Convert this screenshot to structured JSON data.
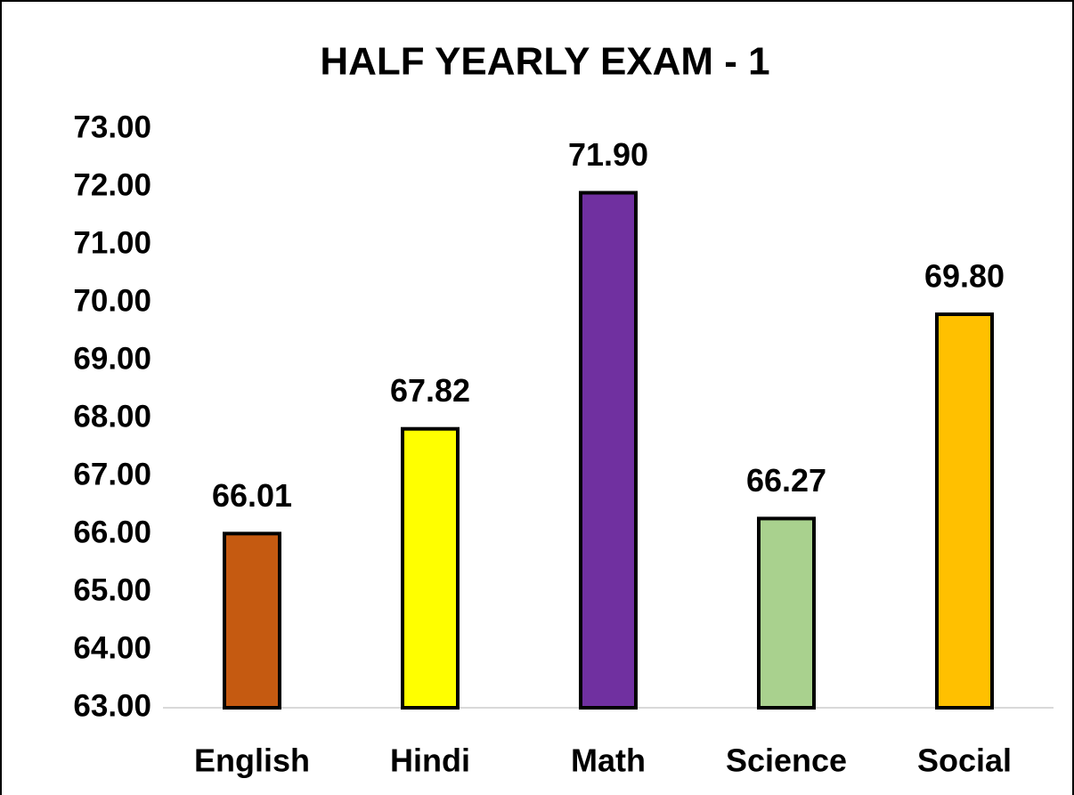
{
  "chart_data": {
    "type": "bar",
    "title": "HALF YEARLY EXAM - 1",
    "categories": [
      "English",
      "Hindi",
      "Math",
      "Science",
      "Social"
    ],
    "values": [
      66.01,
      67.82,
      71.9,
      66.27,
      69.8
    ],
    "value_labels": [
      "66.01",
      "67.82",
      "71.90",
      "66.27",
      "69.80"
    ],
    "colors": [
      "#c55a11",
      "#ffff00",
      "#7030a0",
      "#a9d18e",
      "#ffc000"
    ],
    "ylim": [
      63,
      73
    ],
    "yticks": [
      {
        "value": 63,
        "label": "63.00"
      },
      {
        "value": 64,
        "label": "64.00"
      },
      {
        "value": 65,
        "label": "65.00"
      },
      {
        "value": 66,
        "label": "66.00"
      },
      {
        "value": 67,
        "label": "67.00"
      },
      {
        "value": 68,
        "label": "68.00"
      },
      {
        "value": 69,
        "label": "69.00"
      },
      {
        "value": 70,
        "label": "70.00"
      },
      {
        "value": 71,
        "label": "71.00"
      },
      {
        "value": 72,
        "label": "72.00"
      },
      {
        "value": 73,
        "label": "73.00"
      }
    ],
    "grid": false
  }
}
